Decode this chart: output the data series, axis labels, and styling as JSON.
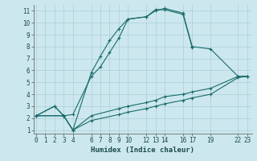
{
  "xlabel": "Humidex (Indice chaleur)",
  "background_color": "#cce8ee",
  "grid_color": "#aacdd6",
  "line_color": "#1a6b6b",
  "xticks": [
    0,
    1,
    2,
    3,
    4,
    6,
    7,
    8,
    9,
    10,
    12,
    13,
    14,
    16,
    17,
    19,
    22,
    23
  ],
  "yticks": [
    1,
    2,
    3,
    4,
    5,
    6,
    7,
    8,
    9,
    10,
    11
  ],
  "xlim": [
    -0.3,
    23.5
  ],
  "ylim": [
    0.7,
    11.5
  ],
  "curve1_x": [
    0,
    2,
    3,
    4,
    6,
    7,
    8,
    9,
    10,
    12,
    13,
    14,
    16,
    17
  ],
  "curve1_y": [
    2.2,
    3.0,
    2.2,
    1.0,
    5.8,
    7.2,
    8.5,
    9.5,
    10.3,
    10.5,
    11.1,
    11.1,
    10.7,
    7.9
  ],
  "curve2_x": [
    0,
    2,
    3,
    4,
    6,
    7,
    8,
    9,
    10,
    12,
    13,
    14,
    16,
    17,
    19,
    22,
    23
  ],
  "curve2_y": [
    2.2,
    3.0,
    2.2,
    2.3,
    5.5,
    6.3,
    7.5,
    8.7,
    10.3,
    10.5,
    11.0,
    11.2,
    10.8,
    8.0,
    7.8,
    5.5,
    5.5
  ],
  "curve3_x": [
    0,
    3,
    4,
    6,
    9,
    10,
    12,
    13,
    14,
    16,
    17,
    19,
    22,
    23
  ],
  "curve3_y": [
    2.2,
    2.2,
    1.0,
    2.2,
    2.8,
    3.0,
    3.3,
    3.5,
    3.8,
    4.0,
    4.2,
    4.5,
    5.5,
    5.5
  ],
  "curve4_x": [
    0,
    3,
    4,
    6,
    9,
    10,
    12,
    13,
    14,
    16,
    17,
    19,
    22,
    23
  ],
  "curve4_y": [
    2.2,
    2.2,
    1.0,
    1.8,
    2.3,
    2.5,
    2.8,
    3.0,
    3.2,
    3.5,
    3.7,
    4.0,
    5.4,
    5.5
  ]
}
